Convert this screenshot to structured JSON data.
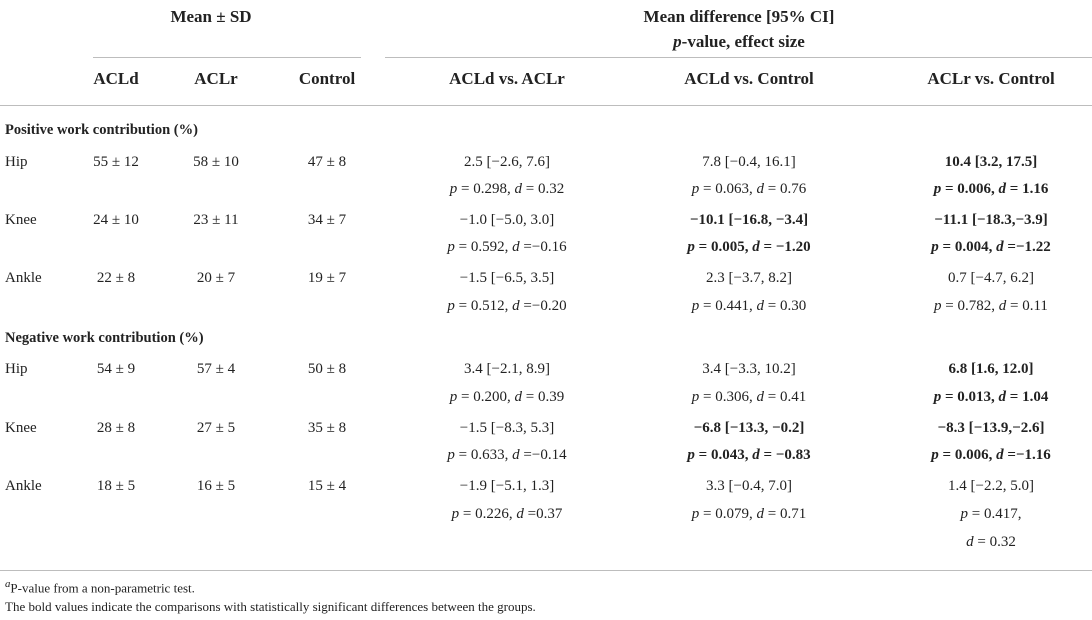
{
  "header": {
    "group_mean": "Mean ± SD",
    "group_diff_line1": "Mean difference [95% CI]",
    "group_diff_line2_italic": "p",
    "group_diff_line2_rest": "-value, effect size",
    "columns": [
      "ACLd",
      "ACLr",
      "Control",
      "ACLd vs. ACLr",
      "ACLd vs. Control",
      "ACLr vs. Control"
    ]
  },
  "sections": [
    {
      "title": "Positive work contribution (%)",
      "rows": [
        {
          "label": "Hip",
          "means": [
            "55 ± 12",
            "58 ± 10",
            "47 ± 8"
          ],
          "diffs": [
            {
              "ci": "2.5 [−2.6, 7.6]",
              "p": "0.298",
              "d": "0.32",
              "bold": false
            },
            {
              "ci": "7.8 [−0.4, 16.1]",
              "p": "0.063",
              "d": "0.76",
              "bold": false
            },
            {
              "ci": "10.4 [3.2, 17.5]",
              "p": "0.006",
              "d": "1.16",
              "bold": true
            }
          ]
        },
        {
          "label": "Knee",
          "means": [
            "24 ± 10",
            "23 ± 11",
            "34 ± 7"
          ],
          "diffs": [
            {
              "ci": "−1.0 [−5.0, 3.0]",
              "p": "0.592",
              "d": "−0.16",
              "bold": false
            },
            {
              "ci": "−10.1 [−16.8, −3.4]",
              "p": "0.005",
              "d": "−1.20",
              "bold": true
            },
            {
              "ci": "−11.1 [−18.3,−3.9]",
              "p": "0.004",
              "d": "−1.22",
              "bold": true
            }
          ]
        },
        {
          "label": "Ankle",
          "means": [
            "22 ± 8",
            "20 ± 7",
            "19 ± 7"
          ],
          "diffs": [
            {
              "ci": "−1.5 [−6.5, 3.5]",
              "p": "0.512",
              "d": "−0.20",
              "bold": false
            },
            {
              "ci": "2.3 [−3.7, 8.2]",
              "p": "0.441",
              "d": "0.30",
              "bold": false
            },
            {
              "ci": "0.7 [−4.7, 6.2]",
              "p": "0.782",
              "d": "0.11",
              "bold": false
            }
          ]
        }
      ]
    },
    {
      "title": "Negative work contribution (%)",
      "rows": [
        {
          "label": "Hip",
          "means": [
            "54 ± 9",
            "57 ± 4",
            "50 ± 8"
          ],
          "diffs": [
            {
              "ci": "3.4 [−2.1, 8.9]",
              "p": "0.200",
              "d": "0.39",
              "bold": false
            },
            {
              "ci": "3.4 [−3.3, 10.2]",
              "p": "0.306",
              "d": "0.41",
              "bold": false
            },
            {
              "ci": "6.8 [1.6, 12.0]",
              "p": "0.013",
              "d": "1.04",
              "bold": true
            }
          ]
        },
        {
          "label": "Knee",
          "means": [
            "28 ± 8",
            "27 ± 5",
            "35 ± 8"
          ],
          "diffs": [
            {
              "ci": "−1.5 [−8.3, 5.3]",
              "p": "0.633",
              "d": "−0.14",
              "bold": false
            },
            {
              "ci": "−6.8 [−13.3, −0.2]",
              "p": "0.043",
              "d": "−0.83",
              "bold": true
            },
            {
              "ci": "−8.3 [−13.9,−2.6]",
              "p": "0.006",
              "d": "−1.16",
              "bold": true
            }
          ]
        },
        {
          "label": "Ankle",
          "means": [
            "18 ± 5",
            "16 ± 5",
            "15 ± 4"
          ],
          "diffs": [
            {
              "ci": "−1.9 [−5.1, 1.3]",
              "p": "0.226",
              "d": "0.37",
              "bold": false
            },
            {
              "ci": "3.3 [−0.4, 7.0]",
              "p": "0.079",
              "d": "0.71",
              "bold": false
            },
            {
              "ci": "1.4 [−2.2, 5.0]",
              "p": "0.417",
              "d": "0.32",
              "bold": false
            }
          ]
        }
      ]
    }
  ],
  "footnotes": {
    "a_mark": "a",
    "a_text": "P-value from a non-parametric test.",
    "bold_note": "The bold values indicate the comparisons with statistically significant differences between the groups."
  }
}
